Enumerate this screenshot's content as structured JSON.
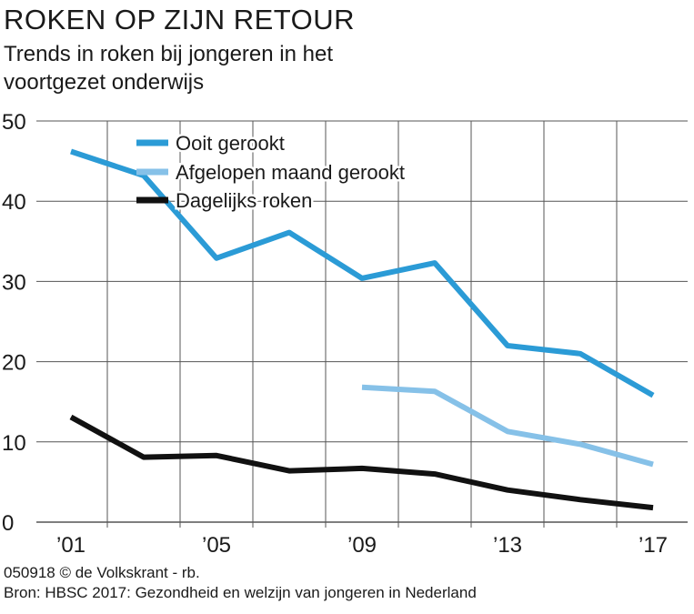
{
  "header": {
    "title": "ROKEN OP ZIJN RETOUR",
    "subtitle": "Trends in roken bij jongeren in het voortgezet onderwijs"
  },
  "footer": {
    "credit": "050918 © de Volkskrant - rb.",
    "source": "Bron: HBSC 2017: Gezondheid en welzijn van jongeren in Nederland"
  },
  "colors": {
    "series_dark_blue": "#2b9bd6",
    "series_light_blue": "#86c1e8",
    "series_black": "#111111",
    "grid": "#555555"
  },
  "chart_data": {
    "type": "line",
    "title": "ROKEN OP ZIJN RETOUR",
    "subtitle": "Trends in roken bij jongeren in het voortgezet onderwijs",
    "xlabel": "",
    "ylabel": "",
    "xlim": [
      2001,
      2017
    ],
    "ylim": [
      0,
      50
    ],
    "yticks": [
      0,
      10,
      20,
      30,
      40,
      50
    ],
    "xticks": [
      {
        "value": 2001,
        "label": "’01"
      },
      {
        "value": 2005,
        "label": "’05"
      },
      {
        "value": 2009,
        "label": "’09"
      },
      {
        "value": 2013,
        "label": "’13"
      },
      {
        "value": 2017,
        "label": "’17"
      }
    ],
    "grid": true,
    "legend_position": "top-left",
    "series": [
      {
        "name": "Ooit gerookt",
        "color": "#2b9bd6",
        "x": [
          2001,
          2003,
          2005,
          2007,
          2009,
          2011,
          2013,
          2015,
          2017
        ],
        "values": [
          46.2,
          43.2,
          32.9,
          36.1,
          30.4,
          32.3,
          22.0,
          21.0,
          15.8
        ]
      },
      {
        "name": "Afgelopen maand gerookt",
        "color": "#86c1e8",
        "x": [
          2009,
          2011,
          2013,
          2015,
          2017
        ],
        "values": [
          16.8,
          16.3,
          11.3,
          9.7,
          7.2
        ]
      },
      {
        "name": "Dagelijks roken",
        "color": "#111111",
        "x": [
          2001,
          2003,
          2005,
          2007,
          2009,
          2011,
          2013,
          2015,
          2017
        ],
        "values": [
          13.1,
          8.1,
          8.3,
          6.4,
          6.7,
          6.0,
          4.0,
          2.8,
          1.8
        ]
      }
    ]
  }
}
